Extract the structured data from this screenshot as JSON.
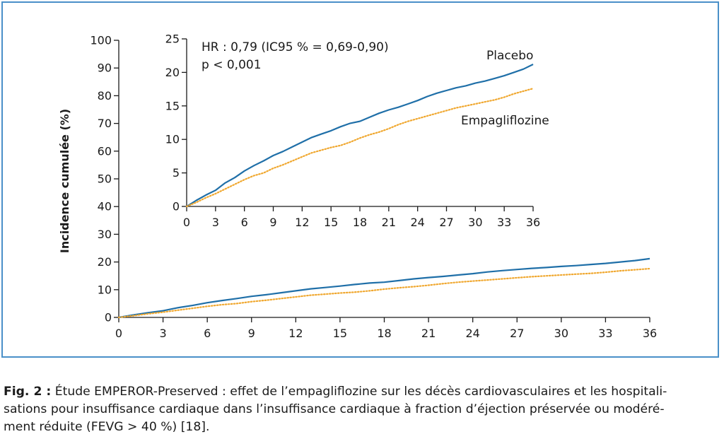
{
  "colors": {
    "frame": "#4a90c8",
    "placebo": "#1f6fa8",
    "empagliflozine": "#f0a830",
    "axis": "#1a1a1a"
  },
  "caption": {
    "label": "Fig. 2 :",
    "line1": " Étude EMPEROR-Preserved : effet de l’empagliflozine sur les décès cardiovasculaires et les hospitali-",
    "line2": "sations pour insuffisance cardiaque dans l’insuffisance cardiaque à fraction d’éjection préservée ou modéré-",
    "line3": "ment réduite (FEVG > 40 %) [18]."
  },
  "chart_data": [
    {
      "type": "line",
      "title": "",
      "xlabel": "",
      "ylabel": "Incidence cumulée (%)",
      "xlim": [
        0,
        36
      ],
      "ylim": [
        0,
        100
      ],
      "xticks": [
        0,
        3,
        6,
        9,
        12,
        15,
        18,
        21,
        24,
        27,
        30,
        33,
        36
      ],
      "yticks": [
        0,
        10,
        20,
        30,
        40,
        50,
        60,
        70,
        80,
        90,
        100
      ],
      "series": [
        {
          "name": "Placebo",
          "style": "solid",
          "x": [
            0,
            1,
            2,
            3,
            4,
            5,
            6,
            7,
            8,
            9,
            10,
            11,
            12,
            13,
            14,
            15,
            16,
            17,
            18,
            19,
            20,
            21,
            22,
            23,
            24,
            25,
            26,
            27,
            28,
            29,
            30,
            31,
            32,
            33,
            34,
            35,
            36
          ],
          "y": [
            0,
            0.9,
            1.7,
            2.4,
            3.5,
            4.3,
            5.3,
            6.1,
            6.8,
            7.6,
            8.2,
            8.9,
            9.6,
            10.3,
            10.8,
            11.3,
            11.9,
            12.4,
            12.7,
            13.3,
            13.9,
            14.4,
            14.8,
            15.3,
            15.8,
            16.4,
            16.9,
            17.3,
            17.7,
            18.0,
            18.4,
            18.7,
            19.1,
            19.5,
            20.0,
            20.5,
            21.2
          ]
        },
        {
          "name": "Empagliflozine",
          "style": "dotted",
          "x": [
            0,
            1,
            2,
            3,
            4,
            5,
            6,
            7,
            8,
            9,
            10,
            11,
            12,
            13,
            14,
            15,
            16,
            17,
            18,
            19,
            20,
            21,
            22,
            23,
            24,
            25,
            26,
            27,
            28,
            29,
            30,
            31,
            32,
            33,
            34,
            35,
            36
          ],
          "y": [
            0,
            0.6,
            1.3,
            1.9,
            2.6,
            3.3,
            4.0,
            4.6,
            5.0,
            5.7,
            6.2,
            6.8,
            7.4,
            8.0,
            8.4,
            8.8,
            9.1,
            9.6,
            10.2,
            10.7,
            11.1,
            11.6,
            12.2,
            12.7,
            13.1,
            13.5,
            13.9,
            14.3,
            14.7,
            15.0,
            15.3,
            15.6,
            15.9,
            16.3,
            16.8,
            17.2,
            17.6
          ]
        }
      ]
    },
    {
      "type": "line",
      "title": "",
      "xlim": [
        0,
        36
      ],
      "ylim": [
        0,
        25
      ],
      "xticks": [
        0,
        3,
        6,
        9,
        12,
        15,
        18,
        21,
        24,
        27,
        30,
        33,
        36
      ],
      "yticks": [
        0,
        5,
        10,
        15,
        20,
        25
      ],
      "annotations": [
        "HR : 0,79 (IC95 % = 0,69-0,90)",
        "p < 0,001"
      ],
      "series": [
        {
          "name": "Placebo",
          "style": "solid",
          "x": [
            0,
            1,
            2,
            3,
            4,
            5,
            6,
            7,
            8,
            9,
            10,
            11,
            12,
            13,
            14,
            15,
            16,
            17,
            18,
            19,
            20,
            21,
            22,
            23,
            24,
            25,
            26,
            27,
            28,
            29,
            30,
            31,
            32,
            33,
            34,
            35,
            36
          ],
          "y": [
            0,
            0.9,
            1.7,
            2.4,
            3.5,
            4.3,
            5.3,
            6.1,
            6.8,
            7.6,
            8.2,
            8.9,
            9.6,
            10.3,
            10.8,
            11.3,
            11.9,
            12.4,
            12.7,
            13.3,
            13.9,
            14.4,
            14.8,
            15.3,
            15.8,
            16.4,
            16.9,
            17.3,
            17.7,
            18.0,
            18.4,
            18.7,
            19.1,
            19.5,
            20.0,
            20.5,
            21.2
          ]
        },
        {
          "name": "Empagliflozine",
          "style": "dotted",
          "x": [
            0,
            1,
            2,
            3,
            4,
            5,
            6,
            7,
            8,
            9,
            10,
            11,
            12,
            13,
            14,
            15,
            16,
            17,
            18,
            19,
            20,
            21,
            22,
            23,
            24,
            25,
            26,
            27,
            28,
            29,
            30,
            31,
            32,
            33,
            34,
            35,
            36
          ],
          "y": [
            0,
            0.6,
            1.3,
            1.9,
            2.6,
            3.3,
            4.0,
            4.6,
            5.0,
            5.7,
            6.2,
            6.8,
            7.4,
            8.0,
            8.4,
            8.8,
            9.1,
            9.6,
            10.2,
            10.7,
            11.1,
            11.6,
            12.2,
            12.7,
            13.1,
            13.5,
            13.9,
            14.3,
            14.7,
            15.0,
            15.3,
            15.6,
            15.9,
            16.3,
            16.8,
            17.2,
            17.6
          ]
        }
      ]
    }
  ]
}
